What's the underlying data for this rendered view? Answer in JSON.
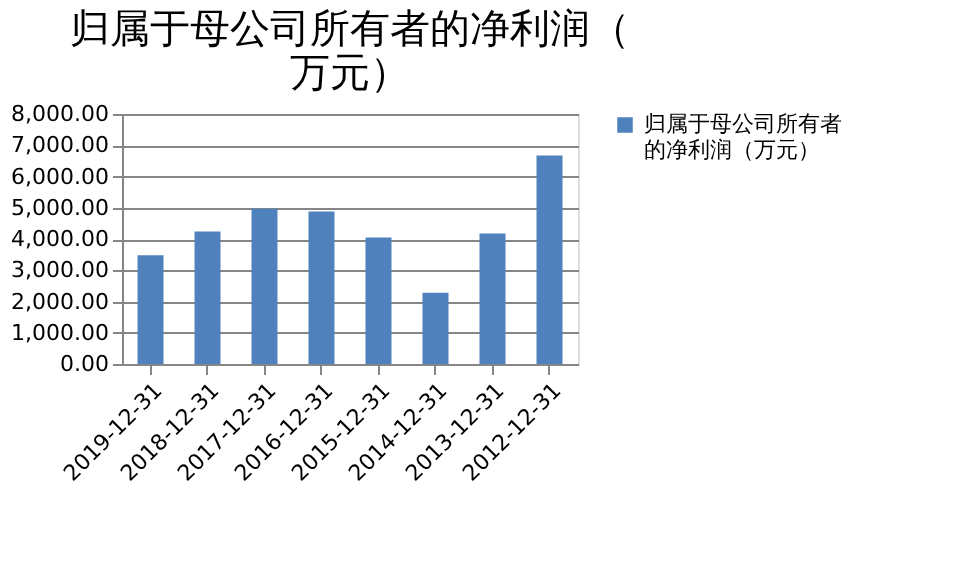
{
  "chart_data": {
    "type": "bar",
    "title": "归属于母公司所有者的净利润（万元）",
    "categories": [
      "2019-12-31",
      "2018-12-31",
      "2017-12-31",
      "2016-12-31",
      "2015-12-31",
      "2014-12-31",
      "2013-12-31",
      "2012-12-31"
    ],
    "series": [
      {
        "name": "归属于母公司所有者的净利润（万元）",
        "color": "#4f81bd",
        "values": [
          3480,
          4240,
          4970,
          4880,
          4050,
          2280,
          4180,
          6670
        ]
      }
    ],
    "ylim": [
      0,
      8000
    ],
    "yticks": [
      {
        "value": 0,
        "label": "0.00"
      },
      {
        "value": 1000,
        "label": "1,000.00"
      },
      {
        "value": 2000,
        "label": "2,000.00"
      },
      {
        "value": 3000,
        "label": "3,000.00"
      },
      {
        "value": 4000,
        "label": "4,000.00"
      },
      {
        "value": 5000,
        "label": "5,000.00"
      },
      {
        "value": 6000,
        "label": "6,000.00"
      },
      {
        "value": 7000,
        "label": "7,000.00"
      },
      {
        "value": 8000,
        "label": "8,000.00"
      }
    ],
    "grid": "y",
    "legend": "right"
  }
}
